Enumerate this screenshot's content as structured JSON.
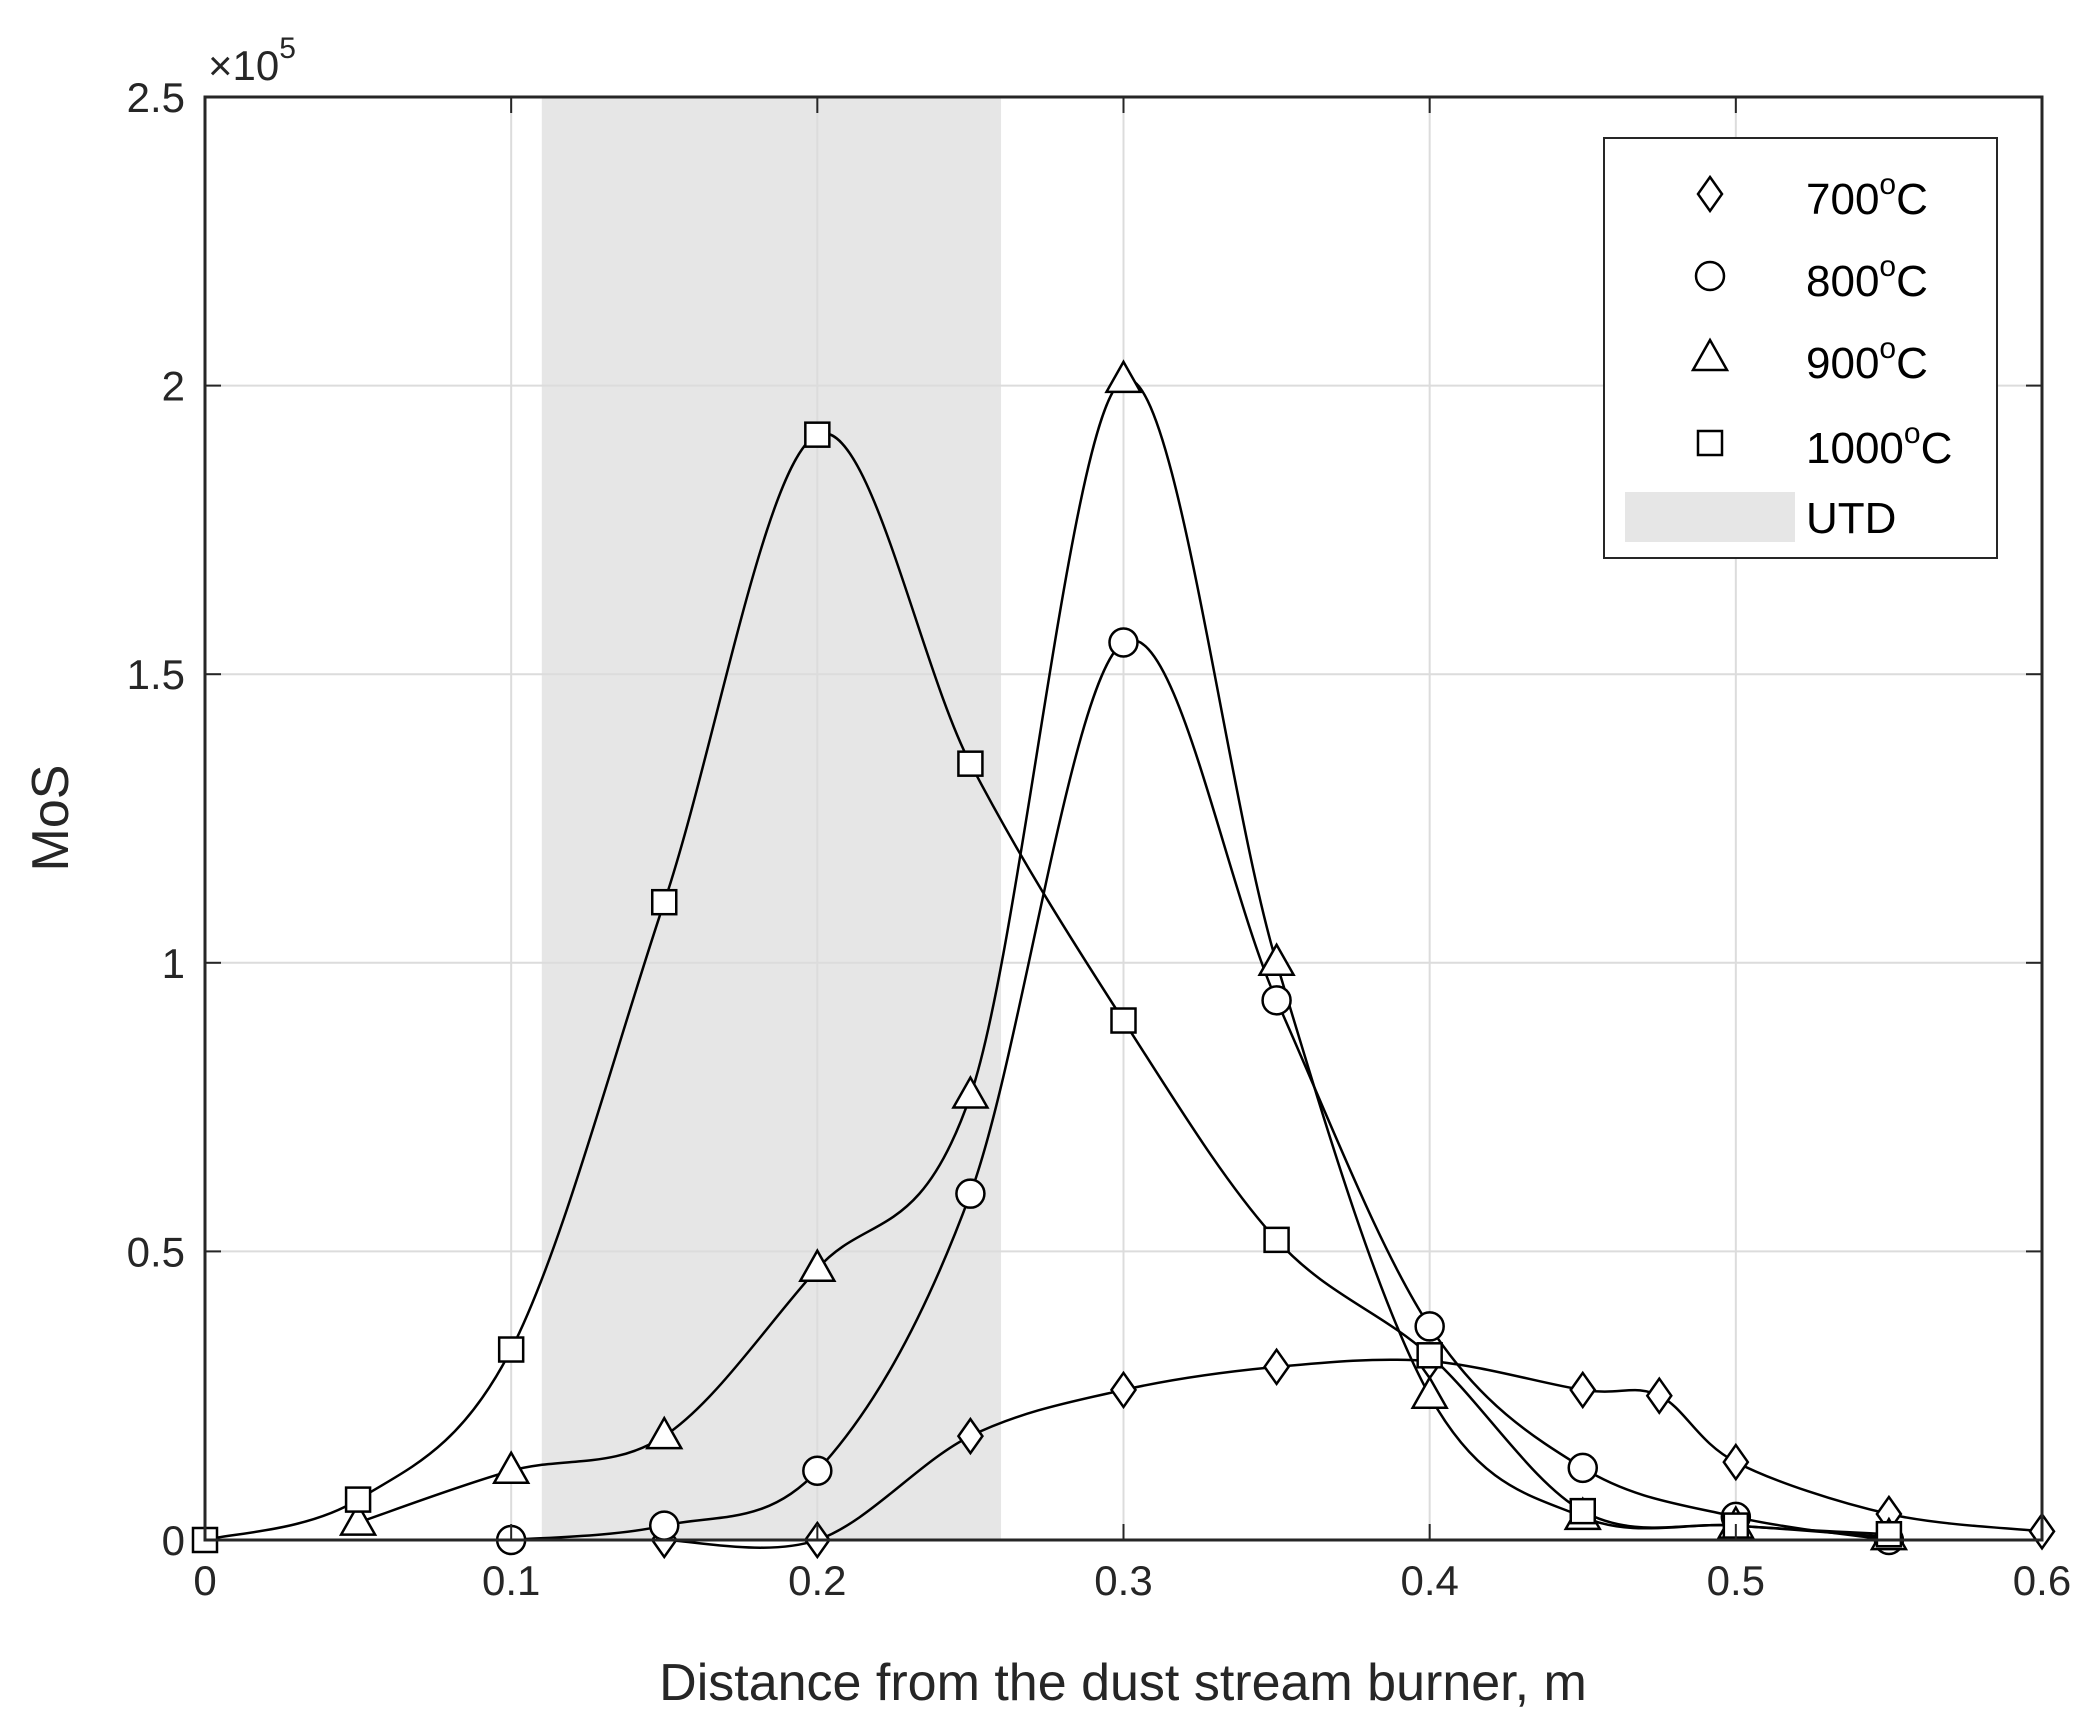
{
  "chart_data": {
    "type": "line",
    "title": "",
    "xlabel": "Distance from the dust stream burner, m",
    "ylabel": "MoS",
    "exponent_label": {
      "base": "×10",
      "power": "5"
    },
    "xlim": [
      0,
      0.6
    ],
    "ylim": [
      0,
      250000
    ],
    "xticks": [
      0,
      0.1,
      0.2,
      0.3,
      0.4,
      0.5,
      0.6
    ],
    "xtick_labels": [
      "0",
      "0.1",
      "0.2",
      "0.3",
      "0.4",
      "0.5",
      "0.6"
    ],
    "yticks": [
      0,
      50000,
      100000,
      150000,
      200000,
      250000
    ],
    "ytick_labels": [
      "0",
      "0.5",
      "1",
      "1.5",
      "2",
      "2.5"
    ],
    "grid": true,
    "legend_position": "top-right",
    "shaded_region": {
      "name": "UTD",
      "x_start": 0.11,
      "x_end": 0.26,
      "color": "#e6e6e6"
    },
    "series": [
      {
        "name": "700",
        "unit_sup": "o",
        "unit": "C",
        "marker": "diamond",
        "x": [
          0.15,
          0.2,
          0.25,
          0.3,
          0.35,
          0.4,
          0.45,
          0.475,
          0.5,
          0.55,
          0.6
        ],
        "y": [
          0,
          0,
          18000,
          26000,
          30000,
          31000,
          26000,
          25000,
          13500,
          4500,
          1500
        ]
      },
      {
        "name": "800",
        "unit_sup": "o",
        "unit": "C",
        "marker": "circle",
        "x": [
          0.1,
          0.15,
          0.2,
          0.25,
          0.3,
          0.35,
          0.4,
          0.45,
          0.5,
          0.55
        ],
        "y": [
          0,
          2500,
          12000,
          60000,
          155500,
          93500,
          37000,
          12500,
          4000,
          0
        ]
      },
      {
        "name": "900",
        "unit_sup": "o",
        "unit": "C",
        "marker": "triangle",
        "x": [
          0.05,
          0.1,
          0.15,
          0.2,
          0.25,
          0.3,
          0.35,
          0.4,
          0.45,
          0.5,
          0.55
        ],
        "y": [
          3000,
          12000,
          18000,
          47000,
          77000,
          201000,
          100000,
          25000,
          4000,
          2500,
          500
        ]
      },
      {
        "name": "1000",
        "unit_sup": "o",
        "unit": "C",
        "marker": "square",
        "x": [
          0,
          0.05,
          0.1,
          0.15,
          0.2,
          0.25,
          0.3,
          0.35,
          0.4,
          0.45,
          0.5,
          0.55
        ],
        "y": [
          0,
          7000,
          33000,
          110500,
          191500,
          134500,
          90000,
          52000,
          32000,
          5000,
          2500,
          1000
        ]
      }
    ]
  }
}
